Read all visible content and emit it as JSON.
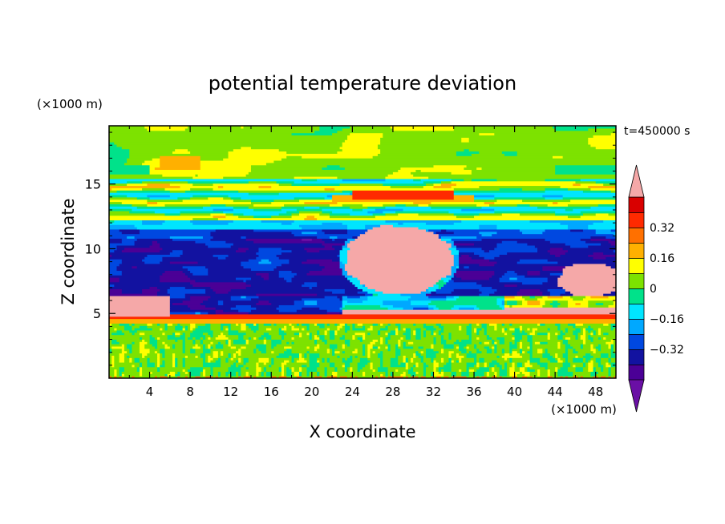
{
  "chart_data": {
    "type": "heatmap",
    "title": "potential temperature deviation",
    "time_label": "t=450000 s",
    "xlabel": "X coordinate",
    "ylabel": "Z coordinate",
    "x_unit": "(×1000 m)",
    "y_unit": "(×1000 m)",
    "xlim": [
      0,
      50
    ],
    "ylim": [
      0,
      19.5
    ],
    "x_ticks": [
      "4",
      "8",
      "12",
      "16",
      "20",
      "24",
      "28",
      "32",
      "36",
      "40",
      "44",
      "48"
    ],
    "y_ticks": [
      "5",
      "10",
      "15"
    ],
    "colorbar": {
      "levels": [
        -0.48,
        -0.4,
        -0.32,
        -0.24,
        -0.16,
        -0.08,
        0,
        0.08,
        0.16,
        0.24,
        0.32,
        0.4,
        0.48
      ],
      "colors": [
        "#6a0fa5",
        "#4b0096",
        "#1212a0",
        "#0048e0",
        "#00a8ff",
        "#00e5ff",
        "#00e28a",
        "#7de200",
        "#ffff00",
        "#ffb000",
        "#ff7000",
        "#ff2a00",
        "#d90000",
        "#f5a8a8"
      ],
      "tick_labels": [
        "0.32",
        "0.16",
        "0",
        "−0.16",
        "−0.32"
      ],
      "tick_values": [
        0.32,
        0.16,
        0,
        -0.16,
        -0.32
      ],
      "extend": "both"
    },
    "regions_summary": [
      {
        "z_range": [
          0.3,
          4.2
        ],
        "value": 0.02,
        "pattern": "noisy small-scale cells"
      },
      {
        "z_range": [
          4.2,
          6.5
        ],
        "value": 0.4,
        "pattern": "warm layer"
      },
      {
        "z_range": [
          6.5,
          11.5
        ],
        "value": -0.38,
        "pattern": "cold band"
      },
      {
        "z_range": [
          6.5,
          12.0
        ],
        "x_range": [
          24,
          34
        ],
        "value": 0.45,
        "pattern": "warm blob"
      },
      {
        "z_range": [
          12.0,
          15.5
        ],
        "value": -0.05,
        "pattern": "alternating layers"
      },
      {
        "z_range": [
          15.5,
          19.5
        ],
        "value": 0.08,
        "pattern": "smooth field"
      }
    ]
  }
}
